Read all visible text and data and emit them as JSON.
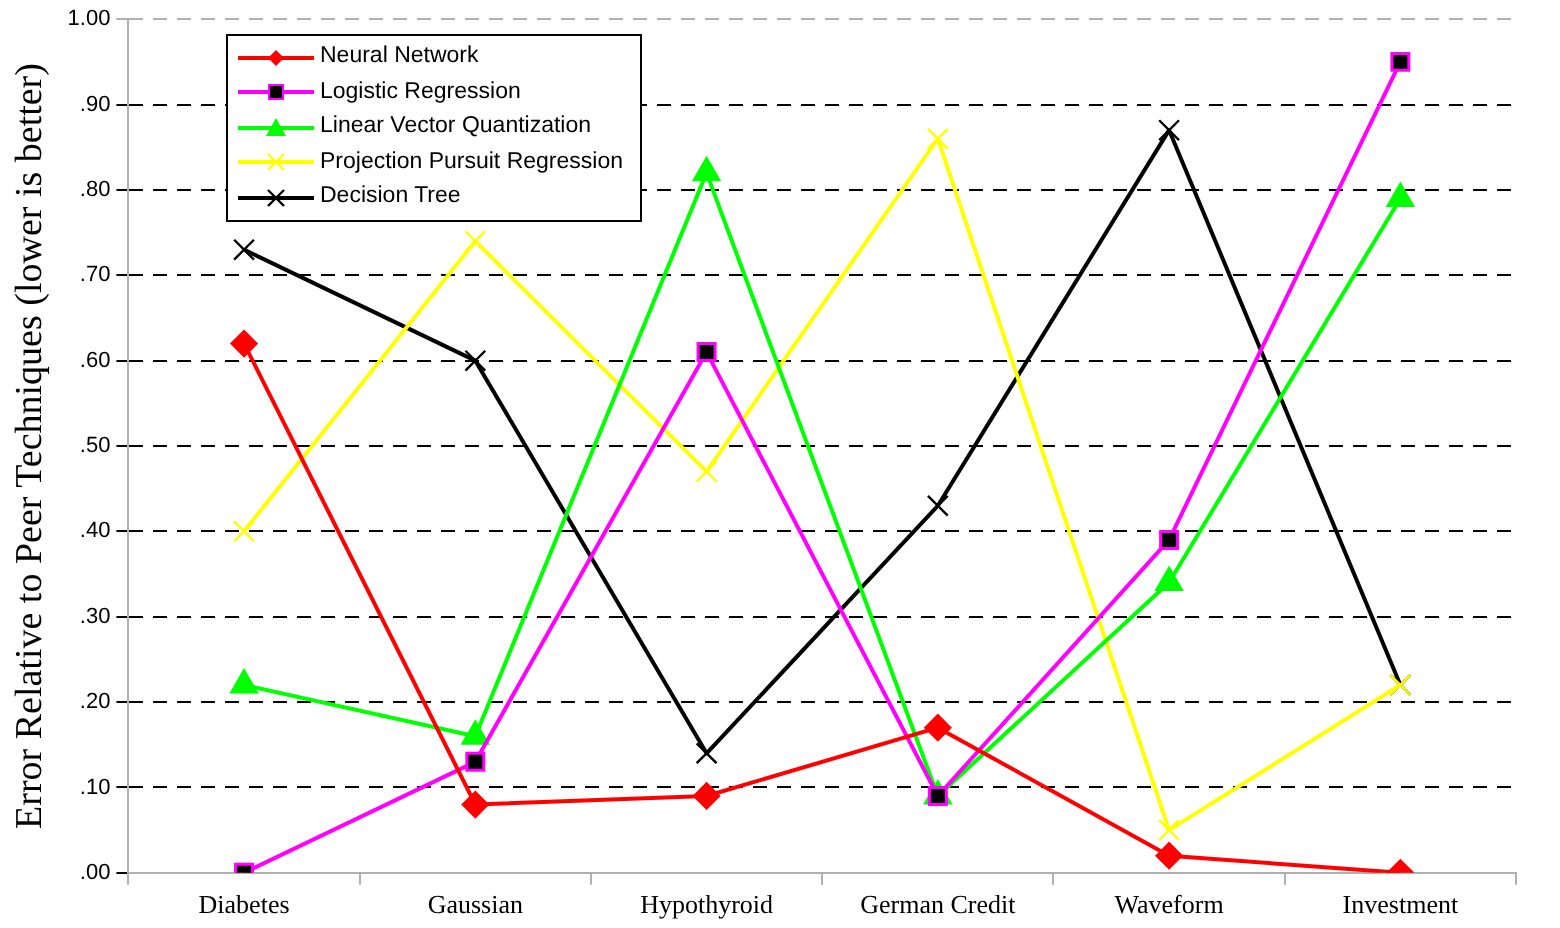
{
  "chart_data": {
    "type": "line",
    "ylabel": "Error Relative to Peer Techniques (lower is better)",
    "categories": [
      "Diabetes",
      "Gaussian",
      "Hypothyroid",
      "German Credit",
      "Waveform",
      "Investment"
    ],
    "series": [
      {
        "name": "Neural Network",
        "color": "#ff0000",
        "marker": "diamond",
        "values": [
          0.62,
          0.08,
          0.09,
          0.17,
          0.02,
          0.0
        ]
      },
      {
        "name": "Logistic Regression",
        "color": "#ff00ff",
        "marker": "square",
        "values": [
          0.0,
          0.13,
          0.61,
          0.09,
          0.39,
          0.95
        ]
      },
      {
        "name": "Linear Vector Quantization",
        "color": "#00ff00",
        "marker": "triangle",
        "values": [
          0.22,
          0.16,
          0.82,
          0.09,
          0.34,
          0.79
        ]
      },
      {
        "name": "Projection Pursuit Regression",
        "color": "#ffff00",
        "marker": "cross",
        "values": [
          0.4,
          0.74,
          0.47,
          0.86,
          0.05,
          0.22
        ]
      },
      {
        "name": "Decision Tree",
        "color": "#000000",
        "marker": "cross",
        "values": [
          0.73,
          0.6,
          0.14,
          0.43,
          0.87,
          0.22
        ]
      }
    ],
    "ylim": [
      0,
      1
    ],
    "yticks": [
      {
        "value": 0,
        "label": ".00"
      },
      {
        "value": 0.1,
        "label": ".10"
      },
      {
        "value": 0.2,
        "label": ".20"
      },
      {
        "value": 0.3,
        "label": ".30"
      },
      {
        "value": 0.4,
        "label": ".40"
      },
      {
        "value": 0.5,
        "label": ".50"
      },
      {
        "value": 0.6,
        "label": ".60"
      },
      {
        "value": 0.7,
        "label": ".70"
      },
      {
        "value": 0.8,
        "label": ".80"
      },
      {
        "value": 0.9,
        "label": ".90"
      },
      {
        "value": 1,
        "label": "1.00"
      }
    ],
    "grid": "y",
    "legend": "top left",
    "line_style": "solid"
  }
}
